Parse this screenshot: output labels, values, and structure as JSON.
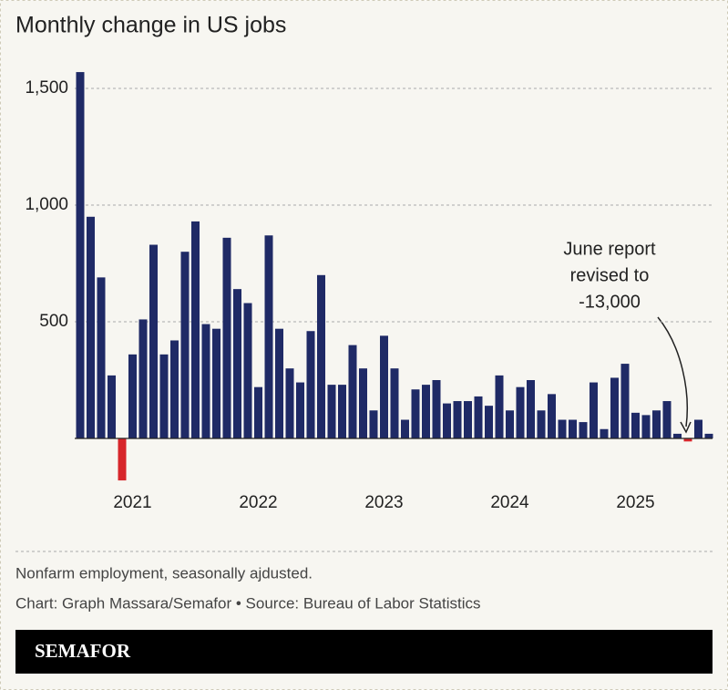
{
  "chart_data": {
    "type": "bar",
    "title": "Monthly change in US jobs",
    "categories": [
      null,
      null,
      null,
      null,
      null,
      "2021",
      null,
      null,
      null,
      null,
      null,
      null,
      null,
      null,
      null,
      null,
      null,
      "2022",
      null,
      null,
      null,
      null,
      null,
      null,
      null,
      null,
      null,
      null,
      null,
      "2023",
      null,
      null,
      null,
      null,
      null,
      null,
      null,
      null,
      null,
      null,
      null,
      "2024",
      null,
      null,
      null,
      null,
      null,
      null,
      null,
      null,
      null,
      null,
      null,
      "2025",
      null,
      null,
      null,
      null,
      null,
      null,
      null
    ],
    "values": [
      1570,
      950,
      690,
      270,
      -180,
      360,
      510,
      830,
      360,
      420,
      800,
      930,
      490,
      470,
      860,
      640,
      580,
      220,
      870,
      470,
      300,
      240,
      460,
      700,
      230,
      230,
      400,
      300,
      120,
      440,
      300,
      80,
      210,
      230,
      250,
      150,
      160,
      160,
      180,
      140,
      270,
      120,
      220,
      250,
      120,
      190,
      80,
      80,
      70,
      240,
      40,
      260,
      320,
      110,
      100,
      120,
      160,
      20,
      -13,
      80,
      20
    ],
    "color": "#1f2a66",
    "negative_color": "#d7262b",
    "ylim": [
      -200,
      1650
    ],
    "yticks": [
      500,
      {
        "value": 1000,
        "label": "1,000"
      },
      {
        "value": 1500,
        "label": "1,500"
      }
    ],
    "grid": true,
    "annotation": [
      "June report",
      "revised to",
      "-13,000"
    ],
    "note": "Nonfarm employment, seasonally ajdusted.",
    "source": "Chart: Graph Massara/Semafor • Source: Bureau of Labor Statistics",
    "brand": "SEMAFOR"
  }
}
